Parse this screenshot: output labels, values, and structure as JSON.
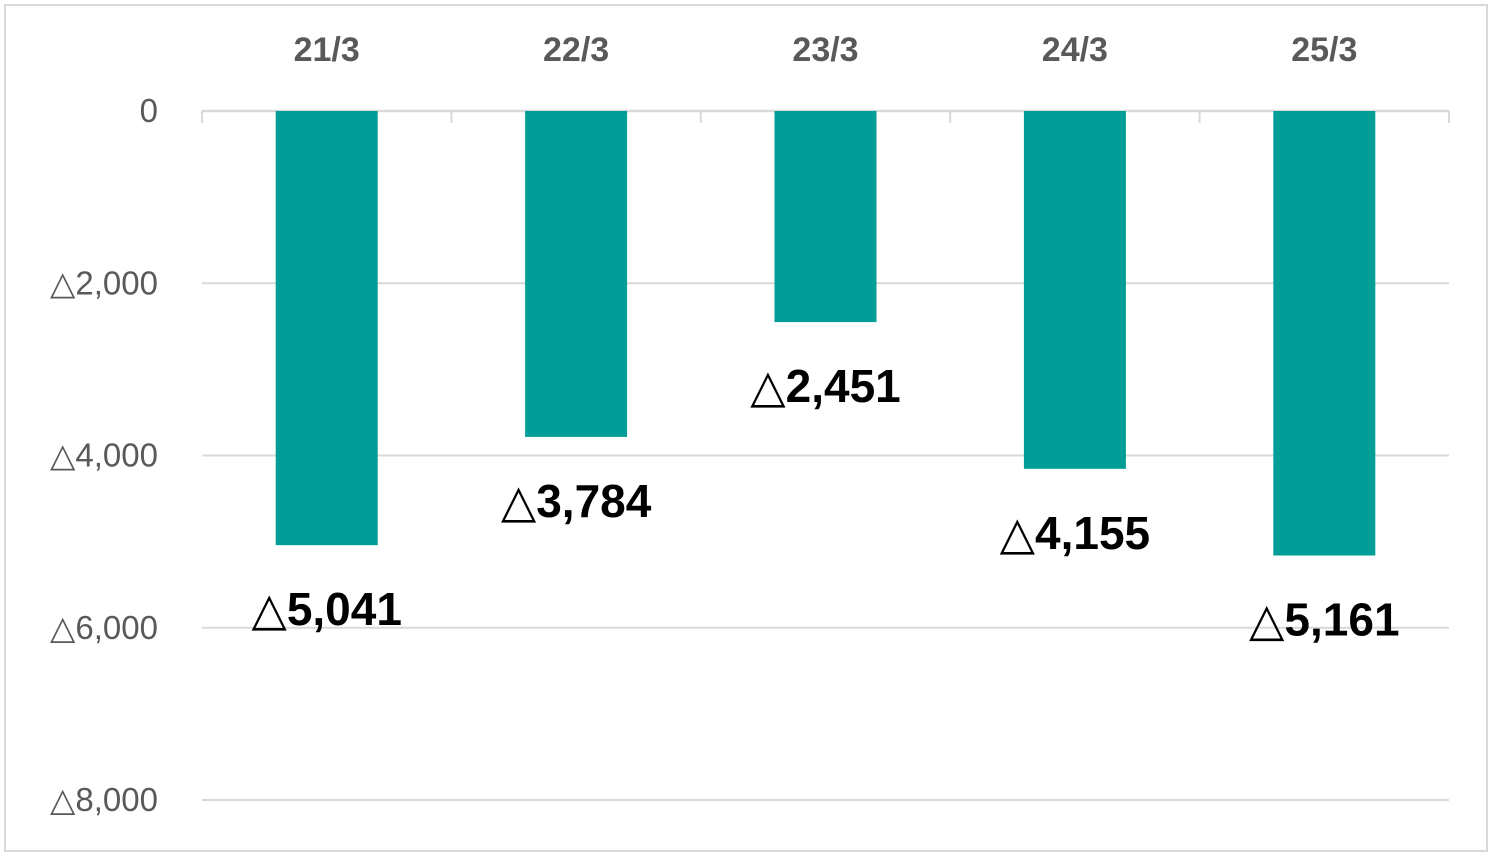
{
  "chart_data": {
    "type": "bar",
    "categories": [
      "21/3",
      "22/3",
      "23/3",
      "24/3",
      "25/3"
    ],
    "values": [
      -5041,
      -3784,
      -2451,
      -4155,
      -5161
    ],
    "data_labels": [
      "△5,041",
      "△3,784",
      "△2,451",
      "△4,155",
      "△5,161"
    ],
    "y_ticks": [
      {
        "value": 0,
        "label": "0"
      },
      {
        "value": -2000,
        "label": "△2,000"
      },
      {
        "value": -4000,
        "label": "△4,000"
      },
      {
        "value": -6000,
        "label": "△6,000"
      },
      {
        "value": -8000,
        "label": "△8,000"
      }
    ],
    "ylim": [
      -8000,
      0
    ],
    "x_axis_position": "top",
    "grid": true,
    "legend": "none",
    "title": "",
    "xlabel": "",
    "ylabel": ""
  },
  "colors": {
    "bar": "#009e96",
    "grid": "#d9d9d9",
    "axis": "#d9d9d9",
    "tick_text": "#595959",
    "data_label_text": "#000000"
  }
}
